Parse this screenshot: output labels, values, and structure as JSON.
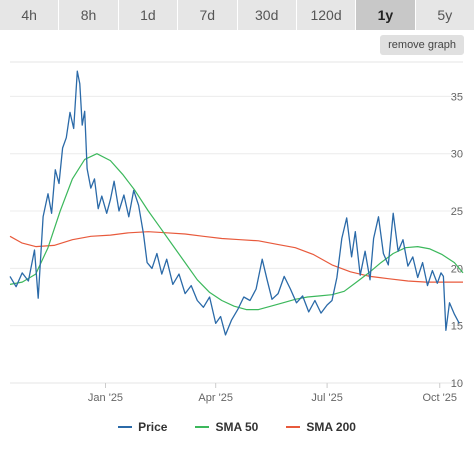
{
  "tabs": [
    {
      "label": "4h",
      "active": false
    },
    {
      "label": "8h",
      "active": false
    },
    {
      "label": "1d",
      "active": false
    },
    {
      "label": "7d",
      "active": false
    },
    {
      "label": "30d",
      "active": false
    },
    {
      "label": "120d",
      "active": false
    },
    {
      "label": "1y",
      "active": true
    },
    {
      "label": "5y",
      "active": false
    }
  ],
  "remove_graph_label": "remove graph",
  "chart_data": {
    "type": "line",
    "x_start": "2024-10-15",
    "x_end": "2025-10-20",
    "ylim": [
      10,
      38
    ],
    "yticks": [
      10,
      15,
      20,
      25,
      30,
      35
    ],
    "xticks": [
      {
        "date": "2025-01-01",
        "label": "Jan '25"
      },
      {
        "date": "2025-04-01",
        "label": "Apr '25"
      },
      {
        "date": "2025-07-01",
        "label": "Jul '25"
      },
      {
        "date": "2025-10-01",
        "label": "Oct '25"
      }
    ],
    "grid": true,
    "legend": "bottom",
    "series": [
      {
        "name": "Price",
        "color": "#2b6aa8",
        "points": [
          [
            "2024-10-15",
            19.3
          ],
          [
            "2024-10-20",
            18.4
          ],
          [
            "2024-10-25",
            19.6
          ],
          [
            "2024-10-30",
            18.9
          ],
          [
            "2024-11-04",
            21.6
          ],
          [
            "2024-11-07",
            17.4
          ],
          [
            "2024-11-11",
            24.5
          ],
          [
            "2024-11-15",
            26.5
          ],
          [
            "2024-11-18",
            24.8
          ],
          [
            "2024-11-21",
            28.6
          ],
          [
            "2024-11-24",
            27.4
          ],
          [
            "2024-11-27",
            30.5
          ],
          [
            "2024-11-30",
            31.4
          ],
          [
            "2024-12-03",
            33.6
          ],
          [
            "2024-12-06",
            32.2
          ],
          [
            "2024-12-09",
            37.2
          ],
          [
            "2024-12-11",
            36.1
          ],
          [
            "2024-12-13",
            32.5
          ],
          [
            "2024-12-15",
            33.7
          ],
          [
            "2024-12-17",
            28.7
          ],
          [
            "2024-12-20",
            27.0
          ],
          [
            "2024-12-23",
            27.8
          ],
          [
            "2024-12-26",
            25.2
          ],
          [
            "2024-12-29",
            26.3
          ],
          [
            "2025-01-02",
            24.8
          ],
          [
            "2025-01-05",
            26.0
          ],
          [
            "2025-01-08",
            27.6
          ],
          [
            "2025-01-12",
            25.0
          ],
          [
            "2025-01-16",
            26.4
          ],
          [
            "2025-01-20",
            24.5
          ],
          [
            "2025-01-24",
            26.8
          ],
          [
            "2025-01-28",
            25.5
          ],
          [
            "2025-02-01",
            23.0
          ],
          [
            "2025-02-04",
            20.5
          ],
          [
            "2025-02-08",
            20.0
          ],
          [
            "2025-02-12",
            21.3
          ],
          [
            "2025-02-16",
            19.5
          ],
          [
            "2025-02-20",
            20.8
          ],
          [
            "2025-02-25",
            18.6
          ],
          [
            "2025-03-02",
            19.5
          ],
          [
            "2025-03-07",
            17.8
          ],
          [
            "2025-03-12",
            18.5
          ],
          [
            "2025-03-17",
            17.2
          ],
          [
            "2025-03-22",
            16.6
          ],
          [
            "2025-03-27",
            17.5
          ],
          [
            "2025-04-01",
            15.2
          ],
          [
            "2025-04-05",
            15.8
          ],
          [
            "2025-04-09",
            14.2
          ],
          [
            "2025-04-14",
            15.5
          ],
          [
            "2025-04-19",
            16.4
          ],
          [
            "2025-04-24",
            17.5
          ],
          [
            "2025-04-29",
            17.2
          ],
          [
            "2025-05-04",
            18.2
          ],
          [
            "2025-05-09",
            20.8
          ],
          [
            "2025-05-13",
            19.0
          ],
          [
            "2025-05-17",
            17.3
          ],
          [
            "2025-05-22",
            17.8
          ],
          [
            "2025-05-27",
            19.3
          ],
          [
            "2025-06-01",
            18.2
          ],
          [
            "2025-06-06",
            17.0
          ],
          [
            "2025-06-11",
            17.6
          ],
          [
            "2025-06-16",
            16.2
          ],
          [
            "2025-06-21",
            17.2
          ],
          [
            "2025-06-26",
            16.1
          ],
          [
            "2025-07-01",
            16.8
          ],
          [
            "2025-07-05",
            17.2
          ],
          [
            "2025-07-09",
            19.2
          ],
          [
            "2025-07-13",
            22.6
          ],
          [
            "2025-07-17",
            24.4
          ],
          [
            "2025-07-21",
            21.0
          ],
          [
            "2025-07-24",
            23.2
          ],
          [
            "2025-07-28",
            19.4
          ],
          [
            "2025-08-01",
            21.5
          ],
          [
            "2025-08-05",
            19.0
          ],
          [
            "2025-08-08",
            22.6
          ],
          [
            "2025-08-12",
            24.5
          ],
          [
            "2025-08-16",
            21.3
          ],
          [
            "2025-08-20",
            20.3
          ],
          [
            "2025-08-24",
            24.8
          ],
          [
            "2025-08-28",
            21.5
          ],
          [
            "2025-09-01",
            22.5
          ],
          [
            "2025-09-05",
            20.2
          ],
          [
            "2025-09-09",
            21.0
          ],
          [
            "2025-09-13",
            19.2
          ],
          [
            "2025-09-17",
            20.5
          ],
          [
            "2025-09-21",
            18.5
          ],
          [
            "2025-09-25",
            19.8
          ],
          [
            "2025-09-29",
            18.7
          ],
          [
            "2025-10-02",
            19.6
          ],
          [
            "2025-10-04",
            19.3
          ],
          [
            "2025-10-06",
            14.6
          ],
          [
            "2025-10-09",
            17.0
          ],
          [
            "2025-10-13",
            16.0
          ],
          [
            "2025-10-17",
            15.2
          ]
        ]
      },
      {
        "name": "SMA 50",
        "color": "#3cb85c",
        "points": [
          [
            "2024-10-15",
            18.6
          ],
          [
            "2024-10-25",
            18.8
          ],
          [
            "2024-11-05",
            19.5
          ],
          [
            "2024-11-15",
            21.8
          ],
          [
            "2024-11-25",
            25.0
          ],
          [
            "2024-12-05",
            27.8
          ],
          [
            "2024-12-15",
            29.5
          ],
          [
            "2024-12-25",
            30.0
          ],
          [
            "2025-01-05",
            29.4
          ],
          [
            "2025-01-15",
            28.2
          ],
          [
            "2025-01-25",
            26.8
          ],
          [
            "2025-02-05",
            25.0
          ],
          [
            "2025-02-15",
            23.5
          ],
          [
            "2025-02-25",
            22.0
          ],
          [
            "2025-03-07",
            20.5
          ],
          [
            "2025-03-17",
            19.0
          ],
          [
            "2025-03-27",
            17.9
          ],
          [
            "2025-04-06",
            17.2
          ],
          [
            "2025-04-16",
            16.7
          ],
          [
            "2025-04-26",
            16.4
          ],
          [
            "2025-05-06",
            16.4
          ],
          [
            "2025-05-16",
            16.7
          ],
          [
            "2025-05-26",
            17.0
          ],
          [
            "2025-06-05",
            17.3
          ],
          [
            "2025-06-15",
            17.5
          ],
          [
            "2025-06-25",
            17.6
          ],
          [
            "2025-07-05",
            17.7
          ],
          [
            "2025-07-15",
            18.0
          ],
          [
            "2025-07-25",
            18.8
          ],
          [
            "2025-08-04",
            19.6
          ],
          [
            "2025-08-14",
            20.5
          ],
          [
            "2025-08-24",
            21.3
          ],
          [
            "2025-09-03",
            21.8
          ],
          [
            "2025-09-13",
            21.9
          ],
          [
            "2025-09-23",
            21.7
          ],
          [
            "2025-10-03",
            21.2
          ],
          [
            "2025-10-13",
            20.5
          ],
          [
            "2025-10-20",
            19.6
          ]
        ]
      },
      {
        "name": "SMA 200",
        "color": "#e85a3c",
        "points": [
          [
            "2024-10-15",
            22.8
          ],
          [
            "2024-10-25",
            22.2
          ],
          [
            "2024-11-05",
            21.9
          ],
          [
            "2024-11-20",
            22.0
          ],
          [
            "2024-12-05",
            22.5
          ],
          [
            "2024-12-20",
            22.8
          ],
          [
            "2025-01-05",
            22.9
          ],
          [
            "2025-01-20",
            23.1
          ],
          [
            "2025-02-05",
            23.2
          ],
          [
            "2025-02-20",
            23.1
          ],
          [
            "2025-03-07",
            23.0
          ],
          [
            "2025-03-22",
            22.8
          ],
          [
            "2025-04-06",
            22.6
          ],
          [
            "2025-04-21",
            22.5
          ],
          [
            "2025-05-06",
            22.4
          ],
          [
            "2025-05-21",
            22.1
          ],
          [
            "2025-06-05",
            21.8
          ],
          [
            "2025-06-20",
            21.2
          ],
          [
            "2025-07-05",
            20.3
          ],
          [
            "2025-07-20",
            19.7
          ],
          [
            "2025-08-05",
            19.3
          ],
          [
            "2025-08-20",
            19.1
          ],
          [
            "2025-09-05",
            18.9
          ],
          [
            "2025-09-20",
            18.8
          ],
          [
            "2025-10-05",
            18.8
          ],
          [
            "2025-10-20",
            18.8
          ]
        ]
      }
    ]
  }
}
